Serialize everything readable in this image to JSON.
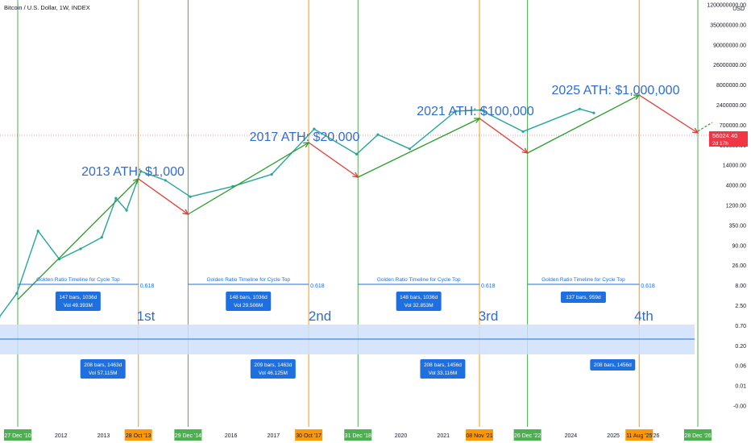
{
  "header": {
    "title": "Bitcoin / U.S. Dollar, 1W, INDEX"
  },
  "colors": {
    "price": "#26a69a",
    "green_line": "#2e9d2e",
    "red_line": "#e53935",
    "blue_text": "#2f6dd0",
    "ruler": "#1e6fe0",
    "band": "#cfe0fb",
    "vline_green": "#4caf50",
    "vline_orange": "#ff9800",
    "price_badge": "#f23645"
  },
  "chart_data": {
    "type": "line",
    "title": "Bitcoin / U.S. Dollar, 1W, INDEX",
    "xlabel": "",
    "ylabel": "USD",
    "y_scale": "log",
    "ylim": [
      -0.01,
      1200000000
    ],
    "x_ticks": [
      "2012",
      "2013",
      "2016",
      "2017",
      "2020",
      "2021",
      "2024",
      "2025",
      "'26"
    ],
    "y_ticks": [
      "1200000000.00",
      "350000000.00",
      "90000000.00",
      "26000000.00",
      "8000000.00",
      "2400000.00",
      "700000.00",
      "180000.00",
      "14000.00",
      "4000.00",
      "1200.00",
      "350.00",
      "90.00",
      "26.00",
      "8.00",
      "2.50",
      "0.70",
      "0.20",
      "0.06",
      "0.01",
      "-0.00"
    ],
    "y_unit": "USD",
    "current_price": "56024.40",
    "countdown": "2d 17h",
    "cycle_dates": [
      {
        "label": "27 Dec '10",
        "kind": "green"
      },
      {
        "label": "28 Oct '13",
        "kind": "orange"
      },
      {
        "label": "29 Dec '14",
        "kind": "green"
      },
      {
        "label": "30 Oct '17",
        "kind": "orange"
      },
      {
        "label": "31 Dec '18",
        "kind": "green"
      },
      {
        "label": "08 Nov '21",
        "kind": "orange"
      },
      {
        "label": "26 Dec '22",
        "kind": "green"
      },
      {
        "label": "11 Aug '25",
        "kind": "orange"
      },
      {
        "label": "28 Dec '26",
        "kind": "green"
      }
    ],
    "ath_annotations": [
      "2013 ATH: $1,000",
      "2017 ATH: $20,000",
      "2021 ATH: $100,000",
      "2025 ATH: $1,000,000"
    ],
    "cycle_labels": [
      "1st",
      "2nd",
      "3rd",
      "4th"
    ],
    "fib_timelines": [
      {
        "label": "Golden Ratio Timeline for Cycle Top",
        "ratio": "0.618",
        "stats": [
          "147 bars, 1036d",
          "Vol 49.393M"
        ]
      },
      {
        "label": "Golden Ratio Timeline for Cycle Top",
        "ratio": "0.618",
        "stats": [
          "148 bars, 1036d",
          "Vol 29.506M"
        ]
      },
      {
        "label": "Golden Ratio Timeline for Cycle Top",
        "ratio": "0.618",
        "stats": [
          "148 bars, 1036d",
          "Vol 32.853M"
        ]
      },
      {
        "label": "Golden Ratio Timeline for Cycle Top",
        "ratio": "0.618",
        "stats": [
          "137 bars, 959d"
        ]
      }
    ],
    "cycle_ranges": [
      [
        "208 bars, 1463d",
        "Vol 57.115M"
      ],
      [
        "209 bars, 1463d",
        "Vol 46.125M"
      ],
      [
        "208 bars, 1456d",
        "Vol 33.116M"
      ],
      [
        "208 bars, 1456d"
      ]
    ],
    "price_series": [
      {
        "x": "2010-07",
        "y": 0.06
      },
      {
        "x": "2010-12",
        "y": 0.3
      },
      {
        "x": "2011-06",
        "y": 20
      },
      {
        "x": "2011-12",
        "y": 3
      },
      {
        "x": "2012-06",
        "y": 6
      },
      {
        "x": "2012-12",
        "y": 13
      },
      {
        "x": "2013-04",
        "y": 180
      },
      {
        "x": "2013-07",
        "y": 80
      },
      {
        "x": "2013-11",
        "y": 1100
      },
      {
        "x": "2014-06",
        "y": 600
      },
      {
        "x": "2015-01",
        "y": 200
      },
      {
        "x": "2016-01",
        "y": 400
      },
      {
        "x": "2016-12",
        "y": 900
      },
      {
        "x": "2017-12",
        "y": 19000
      },
      {
        "x": "2018-12",
        "y": 3500
      },
      {
        "x": "2019-06",
        "y": 13000
      },
      {
        "x": "2020-03",
        "y": 5000
      },
      {
        "x": "2021-04",
        "y": 63000
      },
      {
        "x": "2021-11",
        "y": 68000
      },
      {
        "x": "2022-11",
        "y": 16000
      },
      {
        "x": "2024-03",
        "y": 73000
      },
      {
        "x": "2024-07",
        "y": 56024.4
      }
    ]
  }
}
